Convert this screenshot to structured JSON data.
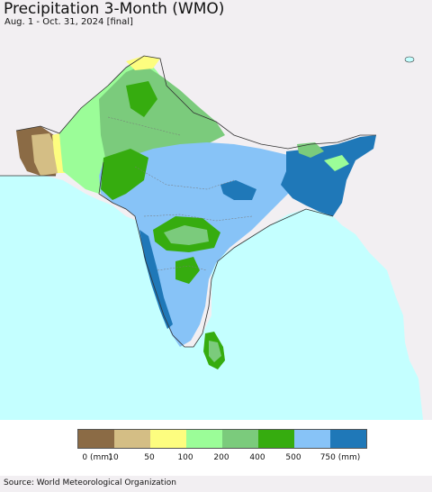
{
  "title": "Precipitation 3-Month (WMO)",
  "subtitle": "Aug. 1 - Oct. 31, 2024 [final]",
  "source": "Source: World Meteorological Organization",
  "colors": {
    "ocean": "#c4ffff",
    "land_outside": "#f2eff2",
    "borders": "#333333",
    "state_lines": "#777777"
  },
  "legend": {
    "swatch_colors": [
      "#8b6b45",
      "#d4be85",
      "#fdfd7f",
      "#9bfd98",
      "#7bcb7c",
      "#36ac0f",
      "#87c3f7",
      "#1f78b8"
    ],
    "tick_labels": [
      "0 (mm)",
      "10",
      "50",
      "100",
      "200",
      "400",
      "500",
      "750 (mm)"
    ]
  }
}
